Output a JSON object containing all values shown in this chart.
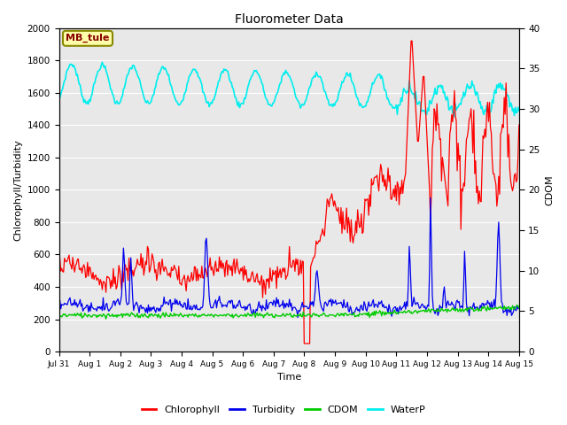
{
  "title": "Fluorometer Data",
  "xlabel": "Time",
  "ylabel_left": "Chlorophyll/Turbidity",
  "ylabel_right": "CDOM",
  "ylim_left": [
    0,
    2000
  ],
  "ylim_right": [
    0,
    40
  ],
  "annotation": "MB_tule",
  "annotation_color": "#880000",
  "annotation_bg": "#FFFFAA",
  "annotation_edge": "#888800",
  "bg_color": "#E8E8E8",
  "series_colors": {
    "Chlorophyll": "#FF0000",
    "Turbidity": "#0000EE",
    "CDOM": "#00CC00",
    "WaterP": "#00EEEE"
  },
  "legend_labels": [
    "Chlorophyll",
    "Turbidity",
    "CDOM",
    "WaterP"
  ],
  "x_tick_labels": [
    "Jul 31",
    "Aug 1",
    "Aug 2",
    "Aug 3",
    "Aug 4",
    "Aug 5",
    "Aug 6",
    "Aug 7",
    "Aug 8",
    "Aug 9",
    "Aug 10",
    "Aug 11",
    "Aug 12",
    "Aug 13",
    "Aug 14",
    "Aug 15"
  ],
  "num_points": 500,
  "right_axis_style": "dotted"
}
